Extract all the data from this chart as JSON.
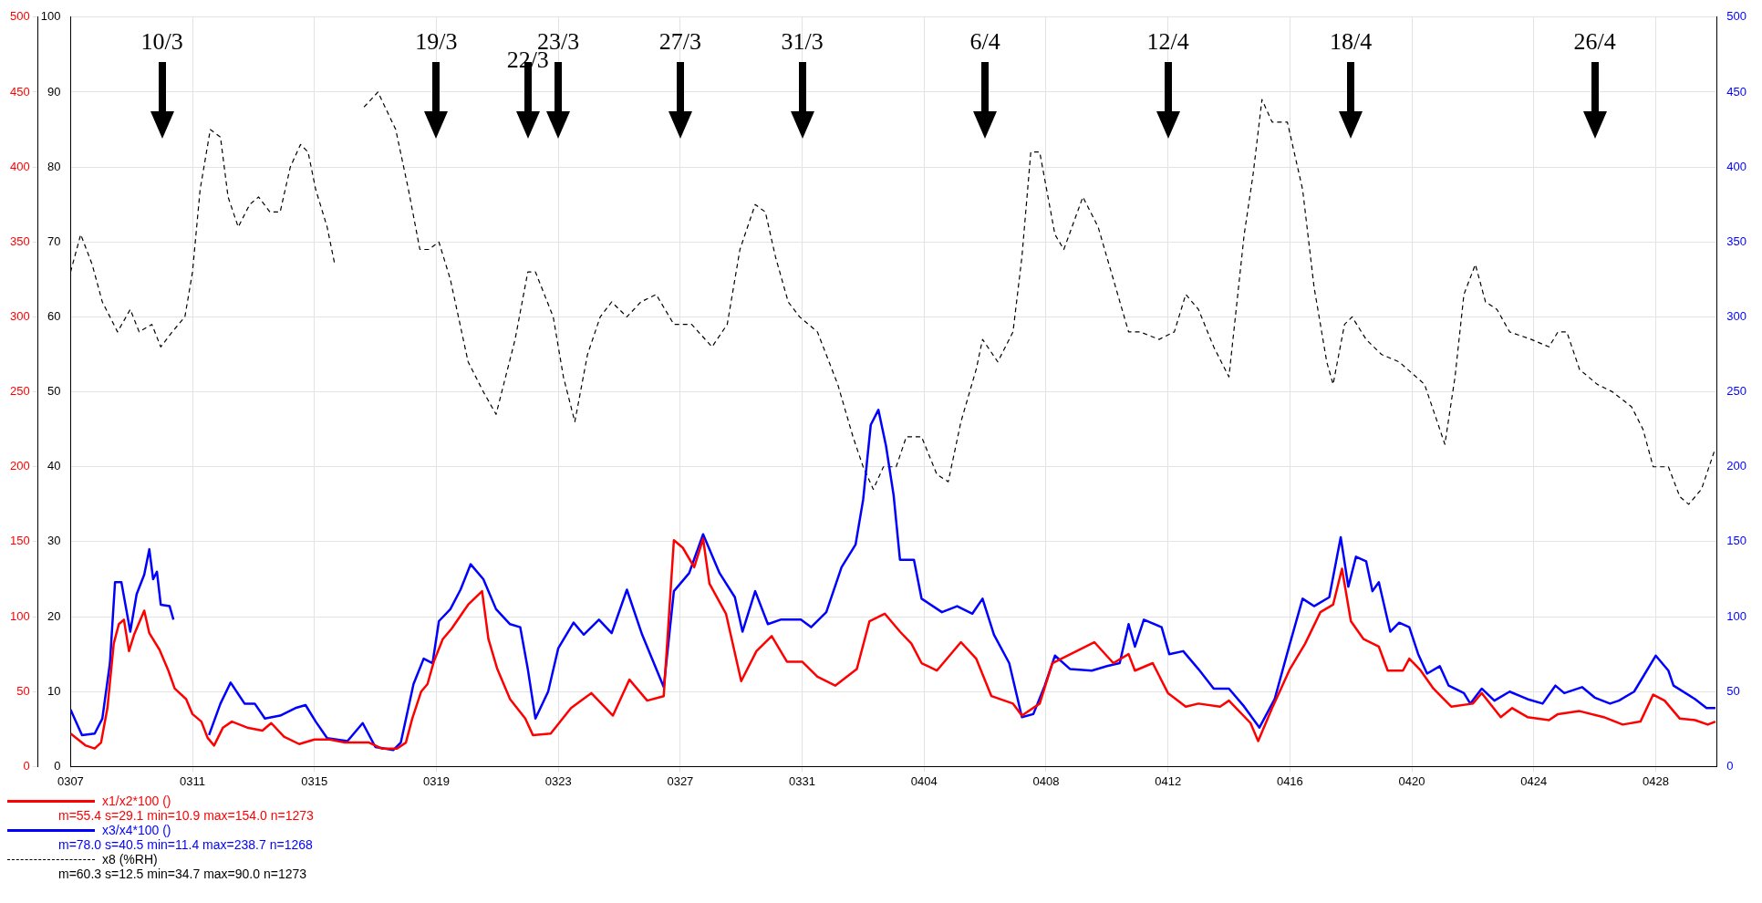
{
  "chart_data": {
    "type": "line",
    "xlim": [
      "--03-07",
      "--04-30"
    ],
    "xticks": [
      {
        "value": "--03-07",
        "label": "0307"
      },
      {
        "value": "--03-11",
        "label": "0311"
      },
      {
        "value": "--03-15",
        "label": "0315"
      },
      {
        "value": "--03-19",
        "label": "0319"
      },
      {
        "value": "--03-23",
        "label": "0323"
      },
      {
        "value": "--03-27",
        "label": "0327"
      },
      {
        "value": "--03-31",
        "label": "0331"
      },
      {
        "value": "--04-04",
        "label": "0404"
      },
      {
        "value": "--04-08",
        "label": "0408"
      },
      {
        "value": "--04-12",
        "label": "0412"
      },
      {
        "value": "--04-16",
        "label": "0416"
      },
      {
        "value": "--04-20",
        "label": "0420"
      },
      {
        "value": "--04-24",
        "label": "0424"
      },
      {
        "value": "--04-28",
        "label": "0428"
      }
    ],
    "ylim": [
      0,
      500
    ],
    "yticks": [
      0,
      50,
      100,
      150,
      200,
      250,
      300,
      350,
      400,
      450,
      500
    ],
    "y2lim": [
      0,
      500
    ],
    "y2ticks": [
      0,
      50,
      100,
      150,
      200,
      250,
      300,
      350,
      400,
      450,
      500
    ],
    "y3lim": [
      0,
      100
    ],
    "y3ticks": [
      0,
      10,
      20,
      30,
      40,
      50,
      60,
      70,
      80,
      90,
      100
    ],
    "grid": true,
    "legend": "bottom left",
    "series": [
      {
        "name": "x1/x2*100 ()",
        "color": "#ff0000",
        "line_style": "solid",
        "x": [
          "--03-07T00:00",
          "--03-07T12:00",
          "--03-07T19:00",
          "--03-08T00:00",
          "--03-08T05:00",
          "--03-08T10:00",
          "--03-08T14:00",
          "--03-08T18:00",
          "--03-08T22:00",
          "--03-09T02:00",
          "--03-09T10:00",
          "--03-09T14:00",
          "--03-09T22:00",
          "--03-10T05:00",
          "--03-10T10:00",
          "--03-10T19:00",
          "--03-11T00:00",
          "--03-11T07:00",
          "--03-11T12:00",
          "--03-11T17:00",
          "--03-12T00:00",
          "--03-12T07:00",
          "--03-12T19:00",
          "--03-13T07:00",
          "--03-13T14:00",
          "--03-14T00:00",
          "--03-14T12:00",
          "--03-15T00:00",
          "--03-15T12:00",
          "--03-16T00:00",
          "--03-16T19:00",
          "--03-17T05:00",
          "--03-17T17:00",
          "--03-18T00:00",
          "--03-18T05:00",
          "--03-18T12:00",
          "--03-18T17:00",
          "--03-18T22:00",
          "--03-19T05:00",
          "--03-19T12:00",
          "--03-20T01:00",
          "--03-20T12:00",
          "--03-20T17:00",
          "--03-21T00:00",
          "--03-21T10:00",
          "--03-21T22:00",
          "--03-22T04:00",
          "--03-22T18:00",
          "--03-23T10:00",
          "--03-24T02:00",
          "--03-24T19:00",
          "--03-25T08:00",
          "--03-25T22:00",
          "--03-26T11:00",
          "--03-26T19:00",
          "--03-27T02:00",
          "--03-27T11:00",
          "--03-27T18:00",
          "--03-27T23:00",
          "--03-28T12:00",
          "--03-29T00:00",
          "--03-29T12:00",
          "--03-30T00:00",
          "--03-30T12:00",
          "--03-31T00:00",
          "--03-31T12:00",
          "--04-01T02:00",
          "--04-01T19:00",
          "--04-02T05:00",
          "--04-02T17:00",
          "--04-03T05:00",
          "--04-03T14:00",
          "--04-03T22:00",
          "--04-04T10:00",
          "--04-05T05:00",
          "--04-05T17:00",
          "--04-06T05:00",
          "--04-06T22:00",
          "--04-07T05:00",
          "--04-07T19:00",
          "--04-08T05:00",
          "--04-09T00:00",
          "--04-09T14:00",
          "--04-10T05:00",
          "--04-10T17:00",
          "--04-10T22:00",
          "--04-11T12:00",
          "--04-12T00:00",
          "--04-12T14:00",
          "--04-13T00:00",
          "--04-13T17:00",
          "--04-14T00:00",
          "--04-14T17:00",
          "--04-14T23:00",
          "--04-15T10:00",
          "--04-16T00:00",
          "--04-16T12:00",
          "--04-17T00:00",
          "--04-17T10:00",
          "--04-17T17:00",
          "--04-18T00:00",
          "--04-18T10:00",
          "--04-18T22:00",
          "--04-19T05:00",
          "--04-19T17:00",
          "--04-19T22:00",
          "--04-20T07:00",
          "--04-20T17:00",
          "--04-21T07:00",
          "--04-22T00:00",
          "--04-22T07:00",
          "--04-22T22:00",
          "--04-23T07:00",
          "--04-23T19:00",
          "--04-24T12:00",
          "--04-24T19:00",
          "--04-25T12:00",
          "--04-26T07:00",
          "--04-26T22:00",
          "--04-27T12:00",
          "--04-27T22:00",
          "--04-28T07:00",
          "--04-28T19:00",
          "--04-29T07:00",
          "--04-29T17:00",
          "--04-29T23:00"
        ],
        "values": [
          22,
          14,
          12,
          16,
          39,
          82,
          95,
          98,
          77,
          88,
          104,
          89,
          78,
          64,
          52,
          45,
          35,
          30,
          19,
          14,
          26,
          30,
          26,
          24,
          29,
          20,
          15,
          18,
          18,
          16,
          16,
          12,
          12,
          16,
          32,
          50,
          55,
          70,
          85,
          92,
          108,
          117,
          85,
          65,
          45,
          32,
          21,
          22,
          39,
          49,
          34,
          58,
          44,
          47,
          151,
          146,
          133,
          152,
          122,
          102,
          57,
          77,
          87,
          70,
          70,
          60,
          54,
          65,
          97,
          102,
          90,
          82,
          69,
          64,
          83,
          72,
          47,
          42,
          34,
          42,
          69,
          77,
          83,
          69,
          75,
          64,
          69,
          49,
          40,
          42,
          40,
          44,
          29,
          17,
          39,
          65,
          82,
          103,
          108,
          132,
          97,
          85,
          80,
          64,
          64,
          72,
          64,
          52,
          40,
          42,
          49,
          33,
          39,
          33,
          31,
          35,
          37,
          33,
          28,
          30,
          48,
          44,
          32,
          31,
          28,
          30
        ]
      },
      {
        "name": "x3/x4*100 ()",
        "color": "#0000ff",
        "line_style": "solid",
        "axis": "y2",
        "x": [
          "--03-07T00:00",
          "--03-07T09:00",
          "--03-07T19:00",
          "--03-08T01:00",
          "--03-08T07:00",
          "--03-08T11:00",
          "--03-08T16:00",
          "--03-08T23:00",
          "--03-09T04:00",
          "--03-09T10:00",
          "--03-09T14:00",
          "--03-09T17:00",
          "--03-09T20:00",
          "--03-09T23:00",
          "--03-10T06:00",
          "--03-10T09:00",
          "--03-10T22:00",
          "--03-11T13:00",
          "--03-11T22:00",
          "--03-12T06:00",
          "--03-12T17:00",
          "--03-13T01:00",
          "--03-13T09:00",
          "--03-13T21:00",
          "--03-14T09:00",
          "--03-14T17:00",
          "--03-15T01:00",
          "--03-15T10:00",
          "--03-16T02:00",
          "--03-16T14:00",
          "--03-17T00:00",
          "--03-17T14:00",
          "--03-17T20:00",
          "--03-18T06:00",
          "--03-18T14:00",
          "--03-18T21:00",
          "--03-19T02:00",
          "--03-19T11:00",
          "--03-19T19:00",
          "--03-20T03:00",
          "--03-20T13:00",
          "--03-20T23:00",
          "--03-21T10:00",
          "--03-21T18:00",
          "--03-22T00:00",
          "--03-22T06:00",
          "--03-22T16:00",
          "--03-23T00:00",
          "--03-23T12:00",
          "--03-23T20:00",
          "--03-24T08:00",
          "--03-24T18:00",
          "--03-25T06:00",
          "--03-25T18:00",
          "--03-26T11:00",
          "--03-26T19:00",
          "--03-27T07:00",
          "--03-27T18:00",
          "--03-28T07:00",
          "--03-28T19:00",
          "--03-29T01:00",
          "--03-29T11:00",
          "--03-29T21:00",
          "--03-30T07:00",
          "--03-30T23:00",
          "--03-31T07:00",
          "--03-31T19:00",
          "--04-01T07:00",
          "--04-01T18:00",
          "--04-02T00:00",
          "--04-02T06:00",
          "--04-02T12:00",
          "--04-02T18:00",
          "--04-03T00:00",
          "--04-03T05:00",
          "--04-03T16:00",
          "--04-03T22:00",
          "--04-04T14:00",
          "--04-05T02:00",
          "--04-05T14:00",
          "--04-05T22:00",
          "--04-06T07:00",
          "--04-06T19:00",
          "--04-07T05:00",
          "--04-07T14:00",
          "--04-07T23:00",
          "--04-08T07:00",
          "--04-08T19:00",
          "--04-09T12:00",
          "--04-10T00:00",
          "--04-10T10:00",
          "--04-10T17:00",
          "--04-10T22:00",
          "--04-11T05:00",
          "--04-11T19:00",
          "--04-12T01:00",
          "--04-12T12:00",
          "--04-13T00:00",
          "--04-13T12:00",
          "--04-14T00:00",
          "--04-14T12:00",
          "--04-15T00:00",
          "--04-15T12:00",
          "--04-15T23:00",
          "--04-16T10:00",
          "--04-16T19:00",
          "--04-17T07:00",
          "--04-17T16:00",
          "--04-17T22:00",
          "--04-18T04:00",
          "--04-18T12:00",
          "--04-18T17:00",
          "--04-18T22:00",
          "--04-19T07:00",
          "--04-19T14:00",
          "--04-19T22:00",
          "--04-20T05:00",
          "--04-20T12:00",
          "--04-20T22:00",
          "--04-21T05:00",
          "--04-21T17:00",
          "--04-21T22:00",
          "--04-22T07:00",
          "--04-22T17:00",
          "--04-23T05:00",
          "--04-23T19:00",
          "--04-24T07:00",
          "--04-24T17:00",
          "--04-25T00:00",
          "--04-25T14:00",
          "--04-26T00:00",
          "--04-26T12:00",
          "--04-26T19:00",
          "--04-27T07:00",
          "--04-28T00:00",
          "--04-28T10:00",
          "--04-28T14:00",
          "--04-29T07:00",
          "--04-29T16:00",
          "--04-29T23:00"
        ],
        "values": [
          38,
          21,
          22,
          32,
          69,
          123,
          123,
          90,
          115,
          128,
          145,
          125,
          130,
          108,
          107,
          98,
          null,
          21,
          42,
          56,
          42,
          42,
          32,
          34,
          39,
          41,
          30,
          19,
          17,
          29,
          13,
          11,
          16,
          55,
          72,
          69,
          97,
          105,
          118,
          135,
          125,
          105,
          95,
          93,
          65,
          32,
          50,
          79,
          96,
          88,
          98,
          89,
          118,
          88,
          53,
          117,
          129,
          155,
          129,
          113,
          90,
          117,
          95,
          98,
          98,
          93,
          103,
          133,
          148,
          178,
          228,
          238,
          214,
          181,
          138,
          138,
          112,
          103,
          107,
          102,
          112,
          88,
          69,
          33,
          35,
          54,
          74,
          65,
          64,
          67,
          69,
          95,
          80,
          98,
          93,
          75,
          77,
          65,
          52,
          52,
          40,
          26,
          45,
          79,
          112,
          107,
          113,
          153,
          120,
          140,
          137,
          117,
          123,
          90,
          96,
          93,
          75,
          62,
          67,
          54,
          49,
          42,
          52,
          44,
          50,
          45,
          42,
          54,
          49,
          53,
          46,
          42,
          44,
          50,
          74,
          64,
          54,
          45,
          39,
          39
        ]
      },
      {
        "name": "x8 (%RH)",
        "color": "#000000",
        "line_style": "dashed",
        "axis": "y3",
        "x": [
          "--03-07T00:00",
          "--03-07T08:00",
          "--03-07T17:00",
          "--03-08T01:00",
          "--03-08T13:00",
          "--03-08T23:00",
          "--03-09T06:00",
          "--03-09T16:00",
          "--03-09T23:00",
          "--03-10T08:00",
          "--03-10T18:00",
          "--03-11T00:00",
          "--03-11T06:00",
          "--03-11T14:00",
          "--03-11T22:00",
          "--03-12T04:00",
          "--03-12T12:00",
          "--03-12T21:00",
          "--03-13T04:00",
          "--03-13T13:00",
          "--03-13T21:00",
          "--03-14T05:00",
          "--03-14T13:00",
          "--03-14T19:00",
          "--03-15T01:00",
          "--03-15T10:00",
          "--03-15T16:00",
          "--03-16T02:00",
          "--03-16T15:00",
          "--03-17T02:00",
          "--03-17T16:00",
          "--03-18T02:00",
          "--03-18T11:00",
          "--03-18T18:00",
          "--03-19T02:00",
          "--03-19T11:00",
          "--03-20T01:00",
          "--03-20T13:00",
          "--03-20T23:00",
          "--03-21T14:00",
          "--03-22T00:00",
          "--03-22T06:00",
          "--03-22T20:00",
          "--03-23T04:00",
          "--03-23T13:00",
          "--03-23T23:00",
          "--03-24T09:00",
          "--03-24T18:00",
          "--03-25T06:00",
          "--03-25T17:00",
          "--03-26T05:00",
          "--03-26T19:00",
          "--03-27T09:00",
          "--03-28T01:00",
          "--03-28T13:00",
          "--03-28T23:00",
          "--03-29T11:00",
          "--03-29T19:00",
          "--03-30T03:00",
          "--03-30T13:00",
          "--03-30T22:00",
          "--03-31T12:00",
          "--04-01T04:00",
          "--04-01T16:00",
          "--04-02T00:00",
          "--04-02T08:00",
          "--04-02T16:00",
          "--04-03T02:00",
          "--04-03T10:00",
          "--04-03T22:00",
          "--04-04T10:00",
          "--04-04T19:00",
          "--04-05T05:00",
          "--04-05T17:00",
          "--04-05T22:00",
          "--04-06T10:00",
          "--04-06T22:00",
          "--04-07T05:00",
          "--04-07T12:00",
          "--04-07T19:00",
          "--04-08T07:00",
          "--04-08T14:00",
          "--04-09T05:00",
          "--04-09T17:00",
          "--04-10T05:00",
          "--04-10T17:00",
          "--04-11T02:00",
          "--04-11T17:00",
          "--04-12T05:00",
          "--04-12T14:00",
          "--04-13T00:00",
          "--04-13T12:00",
          "--04-14T00:00",
          "--04-14T12:00",
          "--04-14T19:00",
          "--04-15T02:00",
          "--04-15T10:00",
          "--04-15T22:00",
          "--04-16T10:00",
          "--04-16T19:00",
          "--04-17T05:00",
          "--04-17T10:00",
          "--04-17T19:00",
          "--04-18T01:00",
          "--04-18T12:00",
          "--04-19T00:00",
          "--04-19T14:00",
          "--04-20T10:00",
          "--04-20T22:00",
          "--04-21T02:00",
          "--04-21T10:00",
          "--04-21T17:00",
          "--04-22T02:00",
          "--04-22T10:00",
          "--04-22T19:00",
          "--04-23T05:00",
          "--04-23T22:00",
          "--04-24T12:00",
          "--04-24T19:00",
          "--04-25T02:00",
          "--04-25T12:00",
          "--04-26T02:00",
          "--04-26T14:00",
          "--04-27T05:00",
          "--04-27T14:00",
          "--04-27T22:00",
          "--04-28T10:00",
          "--04-28T19:00",
          "--04-29T02:00",
          "--04-29T12:00",
          "--04-29T22:00"
        ],
        "values": [
          66,
          71,
          67,
          62,
          58,
          61,
          58,
          59,
          56,
          58,
          60,
          66,
          77,
          85,
          84,
          76,
          72,
          75,
          76,
          74,
          74,
          80,
          83,
          82,
          77,
          72,
          67,
          null,
          88,
          90,
          85,
          77,
          69,
          69,
          70,
          65,
          54,
          50,
          47,
          57,
          66,
          66,
          60,
          52,
          46,
          55,
          60,
          62,
          60,
          62,
          63,
          59,
          59,
          56,
          59,
          69,
          75,
          74,
          68,
          62,
          60,
          58,
          51,
          44,
          40,
          37,
          40,
          40,
          44,
          44,
          39,
          38,
          46,
          53,
          57,
          54,
          58,
          68,
          82,
          82,
          71,
          69,
          76,
          72,
          65,
          58,
          58,
          57,
          58,
          63,
          61,
          56,
          52,
          71,
          79,
          89,
          86,
          86,
          77,
          64,
          54,
          51,
          59,
          60,
          57,
          55,
          54,
          51,
          45,
          43,
          52,
          63,
          67,
          62,
          61,
          58,
          57,
          56,
          58,
          58,
          53,
          51,
          50,
          48,
          45,
          40,
          40,
          36,
          35,
          37,
          42
        ]
      }
    ],
    "annotations": [
      "10/3",
      "19/3",
      "22/3",
      "23/3",
      "27/3",
      "31/3",
      "6/4",
      "12/4",
      "18/4",
      "26/4",
      "m=55.4 s=29.1 min=10.9 max=154.0 n=1273",
      "m=78.0 s=40.5 min=11.4 max=238.7 n=1268",
      "m=60.3 s=12.5 min=34.7 max=90.0 n=1273"
    ]
  }
}
